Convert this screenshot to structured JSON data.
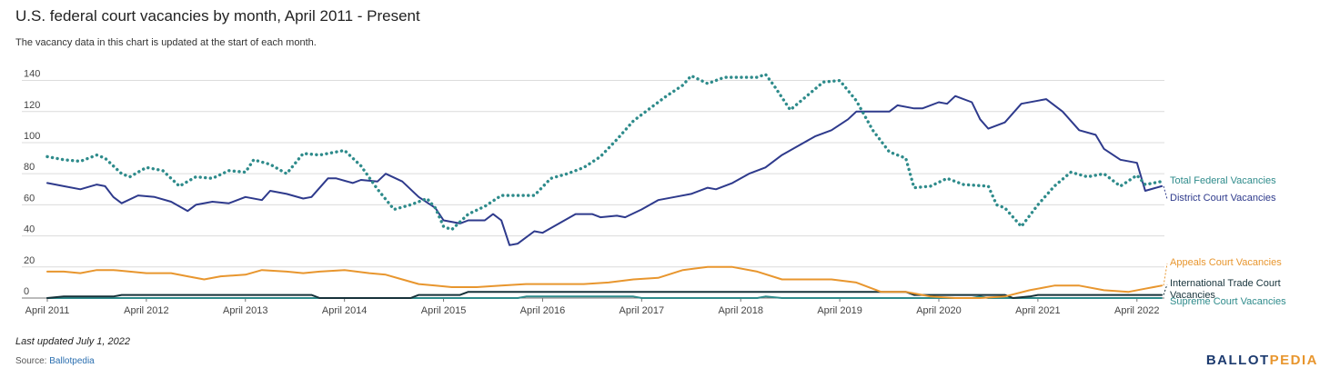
{
  "title": "U.S. federal court vacancies by month, April 2011 - Present",
  "subtitle": "The vacancy data in this chart is updated at the start of each month.",
  "footer": {
    "updated": "Last updated July 1, 2022",
    "source_prefix": "Source:",
    "source_name": "Ballotpedia",
    "logo_part1": "BALLOT",
    "logo_part2": "PEDIA"
  },
  "chart_data": {
    "type": "line",
    "xlabel": "",
    "ylabel": "",
    "x_start": "April 2011",
    "x_end": "July 2022",
    "x_ticks": [
      "April 2011",
      "April 2012",
      "April 2013",
      "April 2014",
      "April 2015",
      "April 2016",
      "April 2017",
      "April 2018",
      "April 2019",
      "April 2020",
      "April 2021",
      "April 2022"
    ],
    "ylim": [
      0,
      145
    ],
    "y_ticks": [
      0,
      20,
      40,
      60,
      80,
      100,
      120,
      140
    ],
    "grid": true,
    "legend": "right-end labels",
    "series": [
      {
        "name": "Total Federal Vacancies",
        "color": "#2e8b8b",
        "style": "dotted",
        "points": [
          [
            "April 2011",
            91
          ],
          [
            "June 2011",
            89
          ],
          [
            "August 2011",
            88
          ],
          [
            "October 2011",
            92
          ],
          [
            "November 2011",
            90
          ],
          [
            "January 2012",
            80
          ],
          [
            "February 2012",
            78
          ],
          [
            "April 2012",
            84
          ],
          [
            "June 2012",
            82
          ],
          [
            "August 2012",
            72
          ],
          [
            "October 2012",
            78
          ],
          [
            "December 2012",
            77
          ],
          [
            "February 2013",
            82
          ],
          [
            "April 2013",
            81
          ],
          [
            "May 2013",
            89
          ],
          [
            "July 2013",
            86
          ],
          [
            "September 2013",
            80
          ],
          [
            "November 2013",
            93
          ],
          [
            "January 2014",
            92
          ],
          [
            "March 2014",
            94
          ],
          [
            "April 2014",
            95
          ],
          [
            "June 2014",
            85
          ],
          [
            "August 2014",
            70
          ],
          [
            "October 2014",
            57
          ],
          [
            "December 2014",
            60
          ],
          [
            "February 2015",
            64
          ],
          [
            "March 2015",
            58
          ],
          [
            "April 2015",
            46
          ],
          [
            "May 2015",
            44
          ],
          [
            "July 2015",
            54
          ],
          [
            "September 2015",
            59
          ],
          [
            "November 2015",
            66
          ],
          [
            "January 2016",
            66
          ],
          [
            "March 2016",
            66
          ],
          [
            "May 2016",
            77
          ],
          [
            "July 2016",
            80
          ],
          [
            "September 2016",
            84
          ],
          [
            "November 2016",
            91
          ],
          [
            "January 2017",
            102
          ],
          [
            "March 2017",
            114
          ],
          [
            "May 2017",
            122
          ],
          [
            "July 2017",
            130
          ],
          [
            "September 2017",
            137
          ],
          [
            "October 2017",
            143
          ],
          [
            "December 2017",
            138
          ],
          [
            "February 2018",
            142
          ],
          [
            "April 2018",
            142
          ],
          [
            "June 2018",
            142
          ],
          [
            "July 2018",
            144
          ],
          [
            "August 2018",
            137
          ],
          [
            "October 2018",
            121
          ],
          [
            "December 2018",
            130
          ],
          [
            "February 2019",
            139
          ],
          [
            "April 2019",
            140
          ],
          [
            "June 2019",
            127
          ],
          [
            "August 2019",
            108
          ],
          [
            "October 2019",
            94
          ],
          [
            "December 2019",
            90
          ],
          [
            "January 2020",
            71
          ],
          [
            "March 2020",
            72
          ],
          [
            "May 2020",
            77
          ],
          [
            "July 2020",
            73
          ],
          [
            "October 2020",
            72
          ],
          [
            "November 2020",
            60
          ],
          [
            "December 2020",
            58
          ],
          [
            "February 2021",
            46
          ],
          [
            "April 2021",
            60
          ],
          [
            "June 2021",
            72
          ],
          [
            "August 2021",
            81
          ],
          [
            "October 2021",
            78
          ],
          [
            "December 2021",
            80
          ],
          [
            "February 2022",
            72
          ],
          [
            "April 2022",
            79
          ],
          [
            "May 2022",
            73
          ],
          [
            "July 2022",
            75
          ]
        ]
      },
      {
        "name": "District Court Vacancies",
        "color": "#2e3a8c",
        "style": "solid",
        "points": [
          [
            "April 2011",
            74
          ],
          [
            "June 2011",
            72
          ],
          [
            "August 2011",
            70
          ],
          [
            "October 2011",
            73
          ],
          [
            "November 2011",
            72
          ],
          [
            "December 2011",
            65
          ],
          [
            "January 2012",
            61
          ],
          [
            "March 2012",
            66
          ],
          [
            "May 2012",
            65
          ],
          [
            "July 2012",
            62
          ],
          [
            "September 2012",
            56
          ],
          [
            "October 2012",
            60
          ],
          [
            "December 2012",
            62
          ],
          [
            "February 2013",
            61
          ],
          [
            "April 2013",
            65
          ],
          [
            "June 2013",
            63
          ],
          [
            "July 2013",
            69
          ],
          [
            "September 2013",
            67
          ],
          [
            "November 2013",
            64
          ],
          [
            "December 2013",
            65
          ],
          [
            "February 2014",
            77
          ],
          [
            "March 2014",
            77
          ],
          [
            "May 2014",
            74
          ],
          [
            "June 2014",
            76
          ],
          [
            "August 2014",
            75
          ],
          [
            "September 2014",
            80
          ],
          [
            "November 2014",
            75
          ],
          [
            "January 2015",
            65
          ],
          [
            "March 2015",
            58
          ],
          [
            "April 2015",
            50
          ],
          [
            "June 2015",
            48
          ],
          [
            "July 2015",
            50
          ],
          [
            "September 2015",
            50
          ],
          [
            "October 2015",
            54
          ],
          [
            "November 2015",
            50
          ],
          [
            "December 2015",
            34
          ],
          [
            "January 2016",
            35
          ],
          [
            "March 2016",
            43
          ],
          [
            "April 2016",
            42
          ],
          [
            "June 2016",
            48
          ],
          [
            "August 2016",
            54
          ],
          [
            "October 2016",
            54
          ],
          [
            "November 2016",
            52
          ],
          [
            "January 2017",
            53
          ],
          [
            "February 2017",
            52
          ],
          [
            "April 2017",
            57
          ],
          [
            "June 2017",
            63
          ],
          [
            "August 2017",
            65
          ],
          [
            "October 2017",
            67
          ],
          [
            "December 2017",
            71
          ],
          [
            "January 2018",
            70
          ],
          [
            "March 2018",
            74
          ],
          [
            "May 2018",
            80
          ],
          [
            "July 2018",
            84
          ],
          [
            "September 2018",
            92
          ],
          [
            "November 2018",
            98
          ],
          [
            "January 2019",
            104
          ],
          [
            "March 2019",
            108
          ],
          [
            "May 2019",
            115
          ],
          [
            "June 2019",
            120
          ],
          [
            "August 2019",
            120
          ],
          [
            "October 2019",
            120
          ],
          [
            "November 2019",
            124
          ],
          [
            "January 2020",
            122
          ],
          [
            "February 2020",
            122
          ],
          [
            "April 2020",
            126
          ],
          [
            "May 2020",
            125
          ],
          [
            "June 2020",
            130
          ],
          [
            "August 2020",
            126
          ],
          [
            "September 2020",
            115
          ],
          [
            "October 2020",
            109
          ],
          [
            "December 2020",
            113
          ],
          [
            "February 2021",
            125
          ],
          [
            "April 2021",
            127
          ],
          [
            "May 2021",
            128
          ],
          [
            "July 2021",
            120
          ],
          [
            "September 2021",
            108
          ],
          [
            "November 2021",
            105
          ],
          [
            "December 2021",
            96
          ],
          [
            "February 2022",
            89
          ],
          [
            "April 2022",
            87
          ],
          [
            "May 2022",
            69
          ],
          [
            "July 2022",
            72
          ]
        ]
      },
      {
        "name": "Appeals Court Vacancies",
        "color": "#e8962e",
        "style": "solid",
        "points": [
          [
            "April 2011",
            17
          ],
          [
            "June 2011",
            17
          ],
          [
            "August 2011",
            16
          ],
          [
            "October 2011",
            18
          ],
          [
            "December 2011",
            18
          ],
          [
            "February 2012",
            17
          ],
          [
            "April 2012",
            16
          ],
          [
            "July 2012",
            16
          ],
          [
            "September 2012",
            14
          ],
          [
            "November 2012",
            12
          ],
          [
            "January 2013",
            14
          ],
          [
            "April 2013",
            15
          ],
          [
            "June 2013",
            18
          ],
          [
            "September 2013",
            17
          ],
          [
            "November 2013",
            16
          ],
          [
            "January 2014",
            17
          ],
          [
            "April 2014",
            18
          ],
          [
            "July 2014",
            16
          ],
          [
            "September 2014",
            15
          ],
          [
            "November 2014",
            12
          ],
          [
            "January 2015",
            9
          ],
          [
            "March 2015",
            8
          ],
          [
            "May 2015",
            7
          ],
          [
            "August 2015",
            7
          ],
          [
            "November 2015",
            8
          ],
          [
            "February 2016",
            9
          ],
          [
            "May 2016",
            9
          ],
          [
            "September 2016",
            9
          ],
          [
            "December 2016",
            10
          ],
          [
            "March 2017",
            12
          ],
          [
            "June 2017",
            13
          ],
          [
            "September 2017",
            18
          ],
          [
            "December 2017",
            20
          ],
          [
            "March 2018",
            20
          ],
          [
            "June 2018",
            17
          ],
          [
            "September 2018",
            12
          ],
          [
            "December 2018",
            12
          ],
          [
            "March 2019",
            12
          ],
          [
            "June 2019",
            10
          ],
          [
            "September 2019",
            4
          ],
          [
            "December 2019",
            4
          ],
          [
            "March 2020",
            1
          ],
          [
            "June 2020",
            0
          ],
          [
            "September 2020",
            0
          ],
          [
            "December 2020",
            1
          ],
          [
            "March 2021",
            5
          ],
          [
            "June 2021",
            8
          ],
          [
            "September 2021",
            8
          ],
          [
            "December 2021",
            5
          ],
          [
            "March 2022",
            4
          ],
          [
            "May 2022",
            6
          ],
          [
            "July 2022",
            8
          ]
        ]
      },
      {
        "name": "International Trade Court Vacancies",
        "color": "#16323a",
        "style": "solid",
        "points": [
          [
            "April 2011",
            0
          ],
          [
            "June 2011",
            1
          ],
          [
            "December 2011",
            1
          ],
          [
            "January 2012",
            2
          ],
          [
            "December 2013",
            2
          ],
          [
            "January 2014",
            0
          ],
          [
            "December 2014",
            0
          ],
          [
            "January 2015",
            2
          ],
          [
            "June 2015",
            2
          ],
          [
            "July 2015",
            4
          ],
          [
            "December 2019",
            4
          ],
          [
            "January 2020",
            2
          ],
          [
            "December 2020",
            2
          ],
          [
            "January 2021",
            0
          ],
          [
            "March 2021",
            1
          ],
          [
            "April 2021",
            2
          ],
          [
            "July 2022",
            2
          ]
        ]
      },
      {
        "name": "Supreme Court Vacancies",
        "color": "#2e8b8b",
        "style": "solid",
        "points": [
          [
            "April 2011",
            0
          ],
          [
            "January 2016",
            0
          ],
          [
            "February 2016",
            1
          ],
          [
            "March 2017",
            1
          ],
          [
            "April 2017",
            0
          ],
          [
            "June 2018",
            0
          ],
          [
            "July 2018",
            1
          ],
          [
            "September 2018",
            0
          ],
          [
            "August 2020",
            0
          ],
          [
            "September 2020",
            1
          ],
          [
            "October 2020",
            0
          ],
          [
            "July 2022",
            0
          ]
        ]
      }
    ]
  }
}
